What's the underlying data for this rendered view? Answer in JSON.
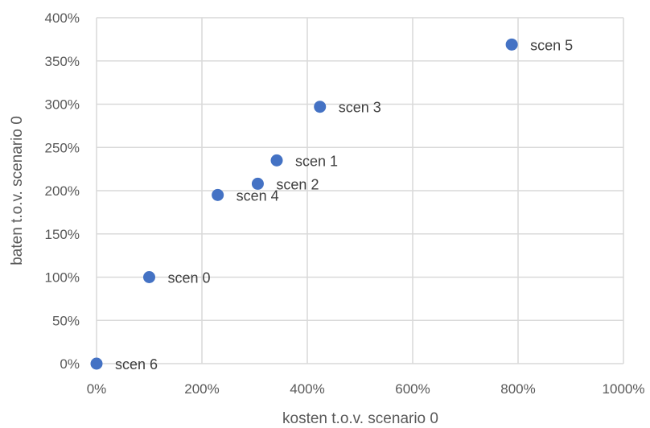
{
  "chart_data": {
    "type": "scatter",
    "xlabel": "kosten t.o.v. scenario 0",
    "ylabel": "baten t.o.v. scenario 0",
    "xlim": [
      0,
      1000
    ],
    "ylim": [
      0,
      400
    ],
    "x_ticks": [
      0,
      200,
      400,
      600,
      800,
      1000
    ],
    "y_ticks": [
      0,
      50,
      100,
      150,
      200,
      250,
      300,
      350,
      400
    ],
    "x_tick_labels": [
      "0%",
      "200%",
      "400%",
      "600%",
      "800%",
      "1000%"
    ],
    "y_tick_labels": [
      "0%",
      "50%",
      "100%",
      "150%",
      "200%",
      "250%",
      "300%",
      "350%",
      "400%"
    ],
    "grid": true,
    "marker_color": "#4472C4",
    "points": [
      {
        "label": "scen 0",
        "x": 100,
        "y": 100
      },
      {
        "label": "scen 1",
        "x": 342,
        "y": 235
      },
      {
        "label": "scen 2",
        "x": 306,
        "y": 208
      },
      {
        "label": "scen 3",
        "x": 424,
        "y": 297
      },
      {
        "label": "scen 4",
        "x": 230,
        "y": 195
      },
      {
        "label": "scen 5",
        "x": 788,
        "y": 369
      },
      {
        "label": "scen 6",
        "x": 0,
        "y": 0
      }
    ]
  }
}
